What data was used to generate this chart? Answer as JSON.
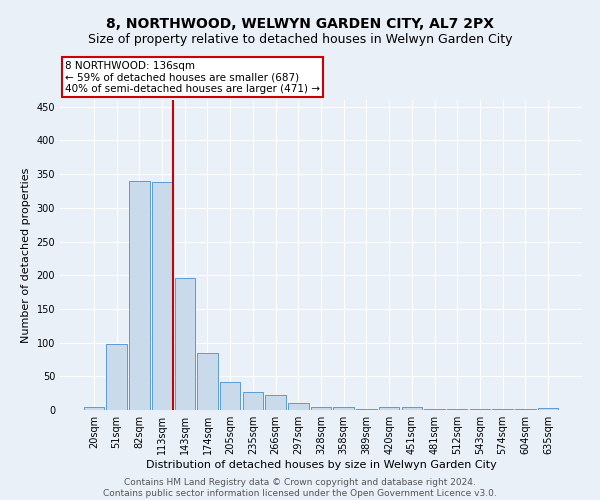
{
  "title": "8, NORTHWOOD, WELWYN GARDEN CITY, AL7 2PX",
  "subtitle": "Size of property relative to detached houses in Welwyn Garden City",
  "xlabel": "Distribution of detached houses by size in Welwyn Garden City",
  "ylabel": "Number of detached properties",
  "categories": [
    "20sqm",
    "51sqm",
    "82sqm",
    "113sqm",
    "143sqm",
    "174sqm",
    "205sqm",
    "235sqm",
    "266sqm",
    "297sqm",
    "328sqm",
    "358sqm",
    "389sqm",
    "420sqm",
    "451sqm",
    "481sqm",
    "512sqm",
    "543sqm",
    "574sqm",
    "604sqm",
    "635sqm"
  ],
  "values": [
    5,
    98,
    340,
    338,
    196,
    84,
    42,
    26,
    23,
    10,
    5,
    4,
    2,
    5,
    5,
    2,
    2,
    2,
    2,
    2,
    3
  ],
  "bar_color": "#c9daea",
  "bar_edge_color": "#5b9bd5",
  "red_line_x": 3.5,
  "annotation_text": "8 NORTHWOOD: 136sqm\n← 59% of detached houses are smaller (687)\n40% of semi-detached houses are larger (471) →",
  "annotation_box_color": "#ffffff",
  "annotation_box_edge": "#cc0000",
  "ylim": [
    0,
    460
  ],
  "yticks": [
    0,
    50,
    100,
    150,
    200,
    250,
    300,
    350,
    400,
    450
  ],
  "footer": "Contains HM Land Registry data © Crown copyright and database right 2024.\nContains public sector information licensed under the Open Government Licence v3.0.",
  "bg_color": "#eaf0f8",
  "grid_color": "#ffffff",
  "title_fontsize": 10,
  "subtitle_fontsize": 9,
  "axis_label_fontsize": 8,
  "tick_fontsize": 7,
  "footer_fontsize": 6.5
}
